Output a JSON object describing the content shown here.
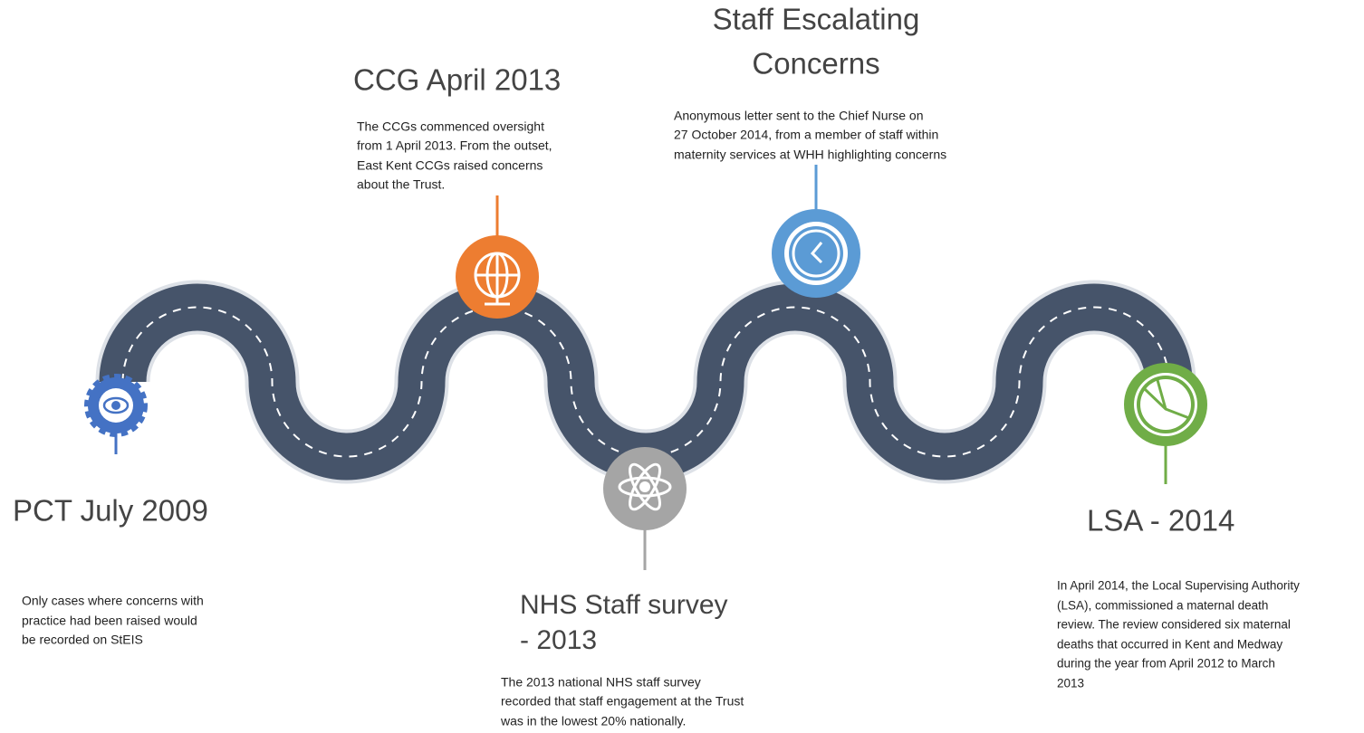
{
  "milestones": [
    {
      "title": [
        "PCT July 2009"
      ],
      "body": [
        "Only cases where concerns with",
        "practice had been raised would",
        "be recorded on StEIS"
      ]
    },
    {
      "title": [
        "CCG April 2013"
      ],
      "body": [
        "The CCGs commenced oversight",
        "from 1 April 2013. From the outset,",
        "East Kent CCGs raised concerns",
        "about the Trust."
      ]
    },
    {
      "title": [
        "Staff Escalating",
        "Concerns"
      ],
      "body": [
        "Anonymous letter sent to the Chief Nurse on",
        "27 October 2014, from a member of staff within",
        "maternity services at WHH highlighting concerns"
      ]
    },
    {
      "title": [
        "NHS Staff survey",
        "- 2013"
      ],
      "body": [
        "The 2013 national NHS staff survey",
        "recorded that staff engagement at the Trust",
        "was in the lowest 20% nationally."
      ]
    },
    {
      "title": [
        "LSA - 2014"
      ],
      "body": [
        "In April 2014, the Local Supervising Authority",
        "(LSA), commissioned a maternal death",
        "review. The review considered six maternal",
        "deaths that occurred in Kent and Medway",
        "during the year from April 2012 to March",
        "2013"
      ]
    }
  ]
}
